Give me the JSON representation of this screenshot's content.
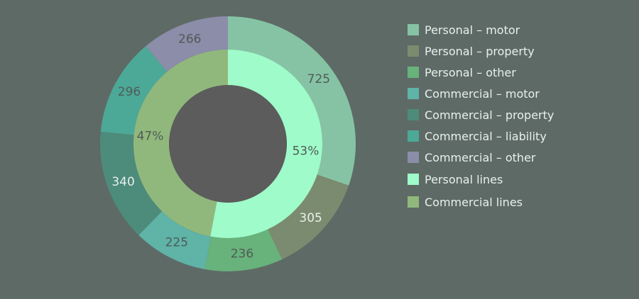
{
  "chart_data": {
    "type": "pie",
    "title": "",
    "outer_series": {
      "name": "",
      "categories": [
        "Personal – motor",
        "Personal – property",
        "Personal – other",
        "Commercial – motor",
        "Commercial – property",
        "Commercial – liability",
        "Commercial – other"
      ],
      "values": [
        725,
        305,
        236,
        225,
        340,
        296,
        266
      ],
      "labels": [
        "725",
        "305",
        "236",
        "225",
        "340",
        "296",
        "266"
      ],
      "colors": [
        "#86c3a4",
        "#7b8b6f",
        "#68b27b",
        "#5fb3a7",
        "#4d8b7b",
        "#4ca997",
        "#8b8da9"
      ]
    },
    "inner_series": {
      "name": "",
      "categories": [
        "Personal lines",
        "Commercial lines"
      ],
      "values": [
        53,
        47
      ],
      "labels": [
        "53%",
        "47%"
      ],
      "colors": [
        "#9ffbc9",
        "#91b87c"
      ]
    },
    "legend_position": "right",
    "hole_color": "#5c5c5c"
  },
  "legend": [
    {
      "label": "Personal – motor",
      "color": "#86c3a4"
    },
    {
      "label": "Personal – property",
      "color": "#7b8b6f"
    },
    {
      "label": "Personal – other",
      "color": "#68b27b"
    },
    {
      "label": "Commercial – motor",
      "color": "#5fb3a7"
    },
    {
      "label": "Commercial – property",
      "color": "#4d8b7b"
    },
    {
      "label": "Commercial – liability",
      "color": "#4ca997"
    },
    {
      "label": "Commercial – other",
      "color": "#8b8da9"
    },
    {
      "label": "Personal lines",
      "color": "#9ffbc9"
    },
    {
      "label": "Commercial lines",
      "color": "#91b87c"
    }
  ]
}
